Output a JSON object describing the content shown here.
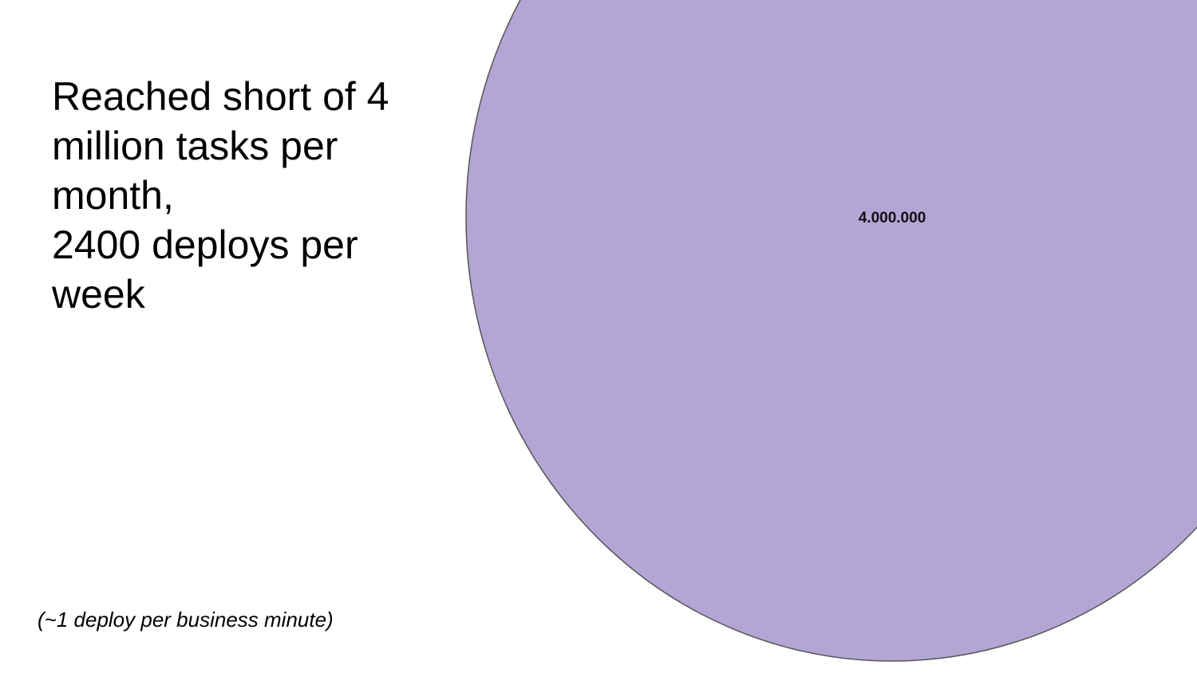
{
  "slide": {
    "headline_lines": [
      "Reached short of 4",
      "million tasks per",
      "month,",
      "2400 deploys per",
      "week"
    ],
    "footnote": "(~1 deploy per business minute)"
  },
  "bubble": {
    "value_label": "4.000.000",
    "fill_color": "#b3a6d4",
    "stroke_color": "#555555"
  }
}
